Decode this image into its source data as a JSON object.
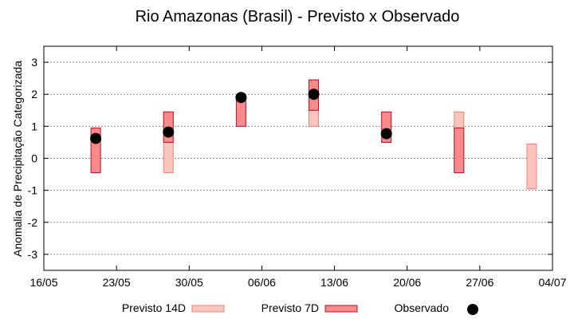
{
  "chart_data": {
    "type": "range-bar-with-points",
    "title": "Rio Amazonas (Brasil) - Previsto x Observado",
    "ylabel": "Anomalia de Precipitação Categorizada",
    "xlabel": "",
    "ylim": [
      -3.5,
      3.5
    ],
    "yticks": [
      -3,
      -2,
      -1,
      0,
      1,
      2,
      3
    ],
    "ytick_labels": [
      "-3",
      "-2",
      "-1",
      "0",
      "1",
      "2",
      "3"
    ],
    "x_range_days": [
      0,
      49
    ],
    "x_ticks": [
      {
        "day": 0,
        "label": "16/05"
      },
      {
        "day": 7,
        "label": "23/05"
      },
      {
        "day": 14,
        "label": "30/05"
      },
      {
        "day": 21,
        "label": "06/06"
      },
      {
        "day": 28,
        "label": "13/06"
      },
      {
        "day": 35,
        "label": "20/06"
      },
      {
        "day": 42,
        "label": "27/06"
      },
      {
        "day": 49,
        "label": "04/07"
      }
    ],
    "grid": true,
    "legend": {
      "placement": "bottom",
      "entries": [
        {
          "name": "Previsto 14D",
          "key": "p14"
        },
        {
          "name": "Previsto 7D",
          "key": "p7"
        },
        {
          "name": "Observado",
          "key": "obs"
        }
      ]
    },
    "colors": {
      "p14_fill": "#fbc4bd",
      "p14_stroke": "#e9857a",
      "p7_fill": "#f98a8a",
      "p7_stroke": "#b8102a",
      "obs": "#000000",
      "grid": "#8a8a8a"
    },
    "series": [
      {
        "name": "Previsto 14D",
        "kind": "range",
        "points": [
          {
            "day": 12,
            "low": -0.45,
            "high": 1.45
          },
          {
            "day": 26,
            "low": 1.0,
            "high": 2.45
          },
          {
            "day": 40,
            "low": -0.45,
            "high": 1.45
          },
          {
            "day": 47,
            "low": -0.95,
            "high": 0.45
          }
        ]
      },
      {
        "name": "Previsto 7D",
        "kind": "range",
        "points": [
          {
            "day": 5,
            "low": -0.45,
            "high": 0.95
          },
          {
            "day": 12,
            "low": 0.5,
            "high": 1.45
          },
          {
            "day": 19,
            "low": 1.0,
            "high": 1.95
          },
          {
            "day": 26,
            "low": 1.5,
            "high": 2.45
          },
          {
            "day": 33,
            "low": 0.5,
            "high": 1.45
          },
          {
            "day": 40,
            "low": -0.45,
            "high": 0.95
          }
        ]
      },
      {
        "name": "Observado",
        "kind": "point",
        "points": [
          {
            "day": 5,
            "value": 0.62
          },
          {
            "day": 12,
            "value": 0.82
          },
          {
            "day": 19,
            "value": 1.9
          },
          {
            "day": 26,
            "value": 2.0
          },
          {
            "day": 33,
            "value": 0.77
          }
        ]
      }
    ]
  }
}
